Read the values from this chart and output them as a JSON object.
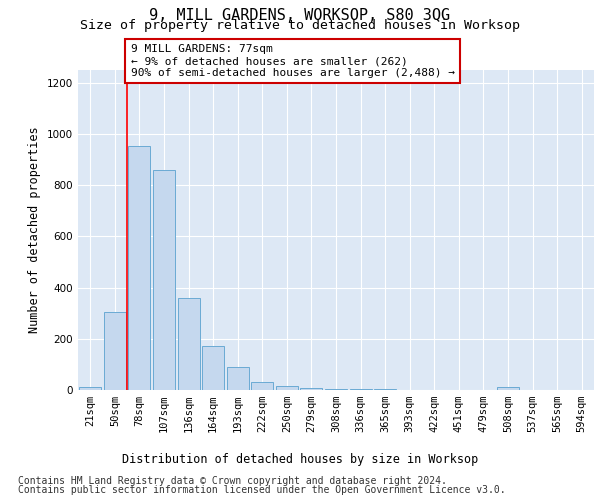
{
  "title": "9, MILL GARDENS, WORKSOP, S80 3QG",
  "subtitle": "Size of property relative to detached houses in Worksop",
  "xlabel": "Distribution of detached houses by size in Worksop",
  "ylabel": "Number of detached properties",
  "bar_color": "#c5d8ee",
  "bar_edge_color": "#6aaad4",
  "background_color": "#dde8f5",
  "grid_color": "white",
  "categories": [
    "21sqm",
    "50sqm",
    "78sqm",
    "107sqm",
    "136sqm",
    "164sqm",
    "193sqm",
    "222sqm",
    "250sqm",
    "279sqm",
    "308sqm",
    "336sqm",
    "365sqm",
    "393sqm",
    "422sqm",
    "451sqm",
    "479sqm",
    "508sqm",
    "537sqm",
    "565sqm",
    "594sqm"
  ],
  "values": [
    10,
    305,
    955,
    860,
    358,
    173,
    90,
    32,
    15,
    8,
    3,
    3,
    3,
    0,
    0,
    0,
    0,
    10,
    0,
    0,
    0
  ],
  "vline_x": 1.5,
  "annotation_title": "9 MILL GARDENS: 77sqm",
  "annotation_line1": "← 9% of detached houses are smaller (262)",
  "annotation_line2": "90% of semi-detached houses are larger (2,488) →",
  "annotation_box_color": "white",
  "annotation_box_edge_color": "#cc0000",
  "footer_line1": "Contains HM Land Registry data © Crown copyright and database right 2024.",
  "footer_line2": "Contains public sector information licensed under the Open Government Licence v3.0.",
  "ylim": [
    0,
    1250
  ],
  "yticks": [
    0,
    200,
    400,
    600,
    800,
    1000,
    1200
  ],
  "title_fontsize": 11,
  "subtitle_fontsize": 9.5,
  "axis_label_fontsize": 8.5,
  "tick_fontsize": 7.5,
  "annotation_fontsize": 8,
  "footer_fontsize": 7
}
